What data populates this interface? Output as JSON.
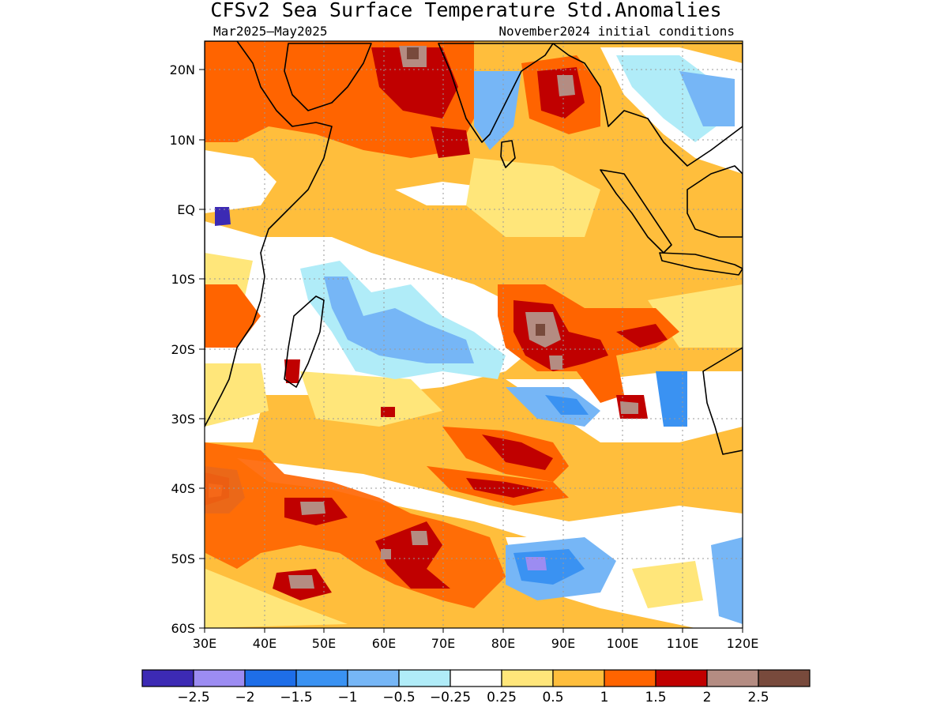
{
  "header": {
    "title": "CFSv2 Sea Surface Temperature Std.Anomalies",
    "period": "Mar2025–May2025",
    "initial_conditions": "November2024 initial conditions"
  },
  "map": {
    "lat_ticks": [
      "20N",
      "10N",
      "EQ",
      "10S",
      "20S",
      "30S",
      "40S",
      "50S",
      "60S"
    ],
    "lon_ticks": [
      "30E",
      "40E",
      "50E",
      "60E",
      "70E",
      "80E",
      "90E",
      "100E",
      "110E",
      "120E"
    ],
    "lat_range": [
      -60,
      24
    ],
    "lon_range": [
      30,
      120
    ]
  },
  "colorbar": {
    "colors": [
      "#3c2ab4",
      "#9c8cf2",
      "#1e6ee8",
      "#3a92f2",
      "#76b6f6",
      "#b0ecf8",
      "#ffffff",
      "#ffe67a",
      "#ffbe3c",
      "#ff6400",
      "#c00000",
      "#b48c82",
      "#784a3c"
    ],
    "labels": [
      "−2.5",
      "−2",
      "−1.5",
      "−1",
      "−0.5",
      "−0.25",
      "0.25",
      "0.5",
      "1",
      "1.5",
      "2",
      "2.5"
    ]
  }
}
